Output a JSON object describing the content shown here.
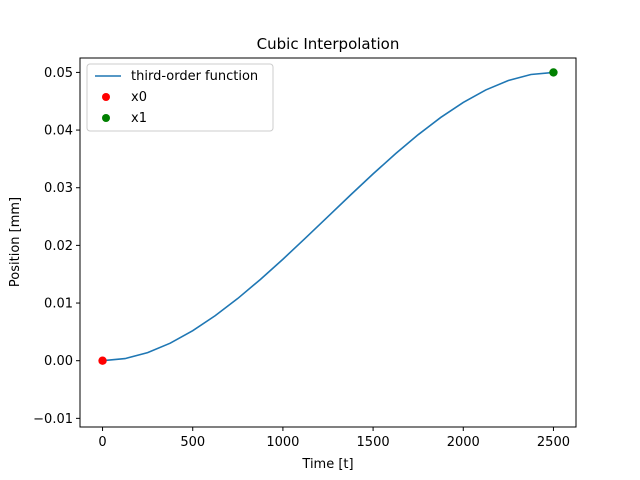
{
  "chart_data": {
    "type": "line",
    "title": "Cubic Interpolation",
    "xlabel": "Time [t]",
    "ylabel": "Position [mm]",
    "xlim": [
      -125,
      2625
    ],
    "ylim": [
      -0.0115,
      0.0525
    ],
    "xticks": [
      0,
      500,
      1000,
      1500,
      2000,
      2500
    ],
    "xtick_labels": [
      "0",
      "500",
      "1000",
      "1500",
      "2000",
      "2500"
    ],
    "yticks": [
      -0.01,
      0.0,
      0.01,
      0.02,
      0.03,
      0.04,
      0.05
    ],
    "ytick_labels": [
      "−0.01",
      "0.00",
      "0.01",
      "0.02",
      "0.03",
      "0.04",
      "0.05"
    ],
    "grid": false,
    "legend_position": "upper-left",
    "series": [
      {
        "name": "third-order function",
        "kind": "line",
        "color": "#1f77b4",
        "x": [
          0,
          125,
          250,
          375,
          500,
          625,
          750,
          875,
          1000,
          1125,
          1250,
          1375,
          1500,
          1625,
          1750,
          1875,
          2000,
          2125,
          2250,
          2375,
          2500
        ],
        "y": [
          0.0,
          0.000363,
          0.0014,
          0.003038,
          0.0052,
          0.007813,
          0.0108,
          0.014088,
          0.0176,
          0.021263,
          0.025,
          0.028738,
          0.0324,
          0.035913,
          0.0392,
          0.042188,
          0.0448,
          0.046963,
          0.0486,
          0.049638,
          0.05
        ]
      },
      {
        "name": "x0",
        "kind": "scatter",
        "color": "#ff0000",
        "x": [
          0
        ],
        "y": [
          0.0
        ]
      },
      {
        "name": "x1",
        "kind": "scatter",
        "color": "#008000",
        "x": [
          2500
        ],
        "y": [
          0.05
        ]
      }
    ]
  }
}
